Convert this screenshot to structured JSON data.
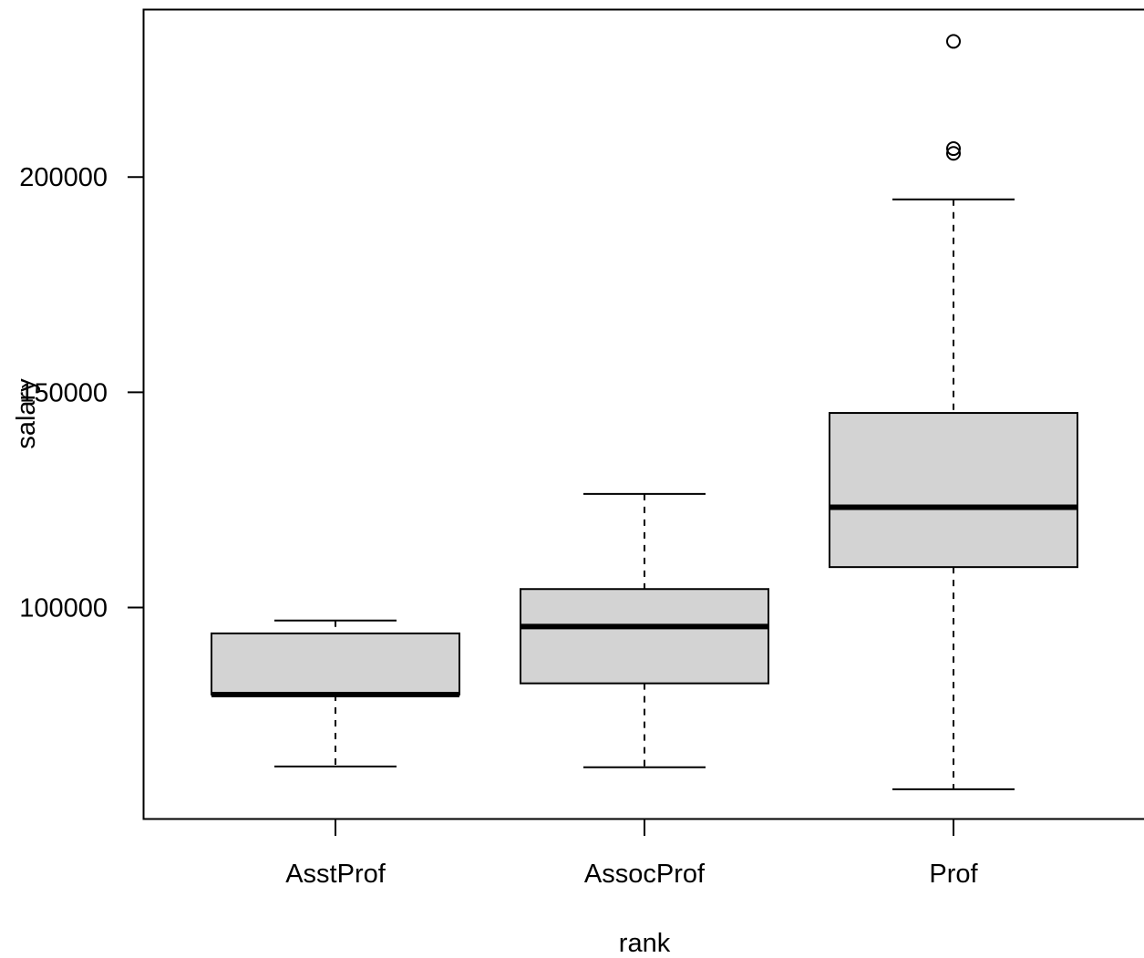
{
  "chart_data": {
    "type": "boxplot",
    "xlabel": "rank",
    "ylabel": "salary",
    "categories": [
      "AsstProf",
      "AssocProf",
      "Prof"
    ],
    "yticks": [
      100000,
      150000,
      200000
    ],
    "ytick_labels": [
      "100000",
      "150000",
      "200000"
    ],
    "ylim": [
      51000,
      239000
    ],
    "box_fill": "#d3d3d3",
    "boxes": [
      {
        "name": "AsstProf",
        "lower_whisker": 63100,
        "q1": 79800,
        "median": 79800,
        "q3": 94000,
        "upper_whisker": 97000,
        "outliers": []
      },
      {
        "name": "AssocProf",
        "lower_whisker": 62900,
        "q1": 82400,
        "median": 95600,
        "q3": 104300,
        "upper_whisker": 126400,
        "outliers": []
      },
      {
        "name": "Prof",
        "lower_whisker": 57800,
        "q1": 109400,
        "median": 123300,
        "q3": 145200,
        "upper_whisker": 194800,
        "outliers": [
          205500,
          206600,
          231500
        ]
      }
    ]
  }
}
